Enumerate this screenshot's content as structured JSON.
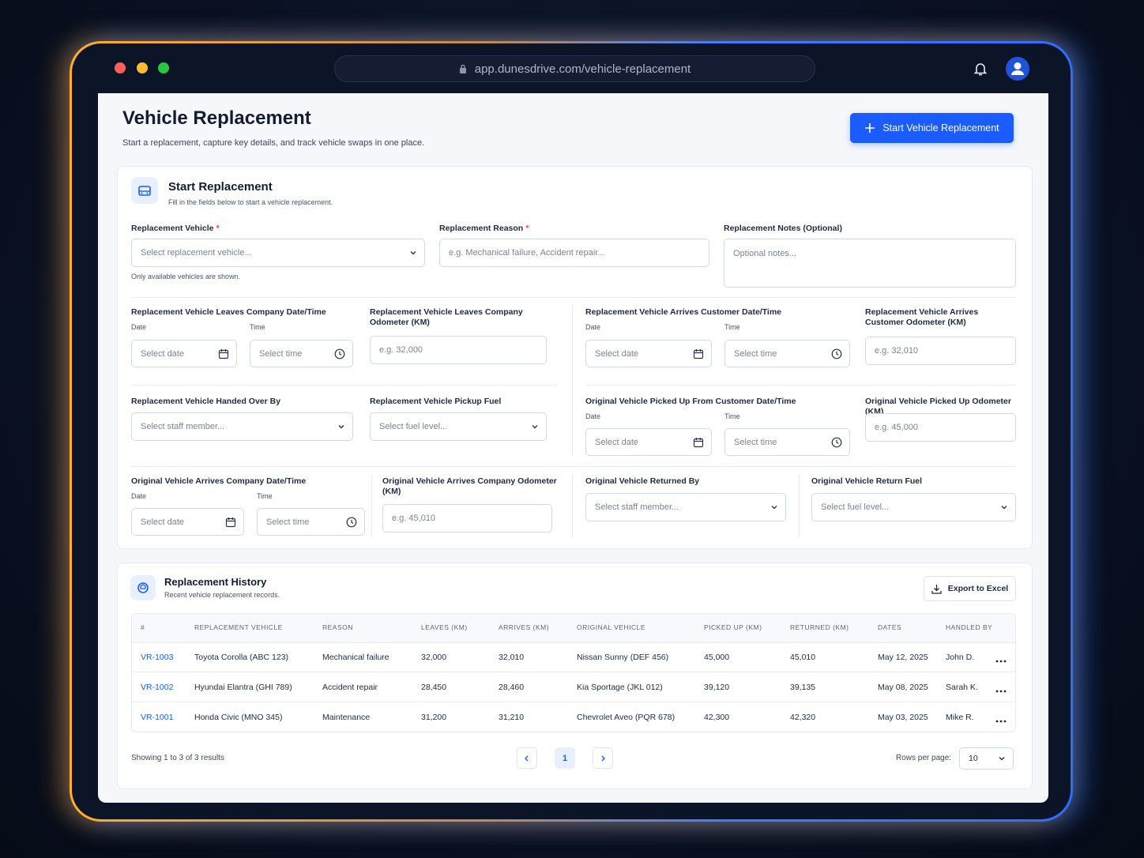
{
  "browser": {
    "url": "app.dunesdrive.com/vehicle-replacement"
  },
  "header": {
    "title": "Vehicle Replacement",
    "subtitle": "Start a replacement, capture key details, and track vehicle swaps in one place.",
    "button": "Start Vehicle Replacement"
  },
  "form": {
    "title": "Start Replacement",
    "subtitle": "Fill in the fields below to start a vehicle replacement.",
    "required_mark": "*",
    "date_label": "Date",
    "time_label": "Time",
    "fields": [
      {
        "label": "Replacement Vehicle",
        "placeholder": "Select replacement vehicle...",
        "helper": "Only available vehicles are shown."
      },
      {
        "label": "Replacement Reason",
        "placeholder": "e.g. Mechanical failure, Accident repair..."
      },
      {
        "label": "Replacement Notes (Optional)",
        "placeholder": "Optional notes..."
      },
      {
        "label": "Replacement Vehicle Leaves Company Date/Time",
        "date_placeholder": "Select date",
        "time_placeholder": "Select time"
      },
      {
        "label": "Replacement Vehicle Leaves Company Odometer (KM)",
        "placeholder": "e.g. 32,000"
      },
      {
        "label": "Replacement Vehicle Arrives Customer Date/Time",
        "date_placeholder": "Select date",
        "time_placeholder": "Select time"
      },
      {
        "label": "Replacement Vehicle Arrives Customer Odometer (KM)",
        "placeholder": "e.g. 32,010"
      },
      {
        "label": "Replacement Vehicle Handed Over By",
        "placeholder": "Select staff member..."
      },
      {
        "label": "Replacement Vehicle Pickup Fuel",
        "placeholder": "Select fuel level..."
      },
      {
        "label": "Original Vehicle Picked Up From Customer Date/Time",
        "date_placeholder": "Select date",
        "time_placeholder": "Select time"
      },
      {
        "label": "Original Vehicle Picked Up Odometer (KM)",
        "placeholder": "e.g. 45,000"
      },
      {
        "label": "Original Vehicle Arrives Company Date/Time",
        "date_placeholder": "Select date",
        "time_placeholder": "Select time"
      },
      {
        "label": "Original Vehicle Arrives Company Odometer (KM)",
        "placeholder": "e.g. 45,010"
      },
      {
        "label": "Original Vehicle Returned By",
        "placeholder": "Select staff member..."
      },
      {
        "label": "Original Vehicle Return Fuel",
        "placeholder": "Select fuel level..."
      }
    ]
  },
  "history": {
    "title": "Replacement History",
    "subtitle": "Recent vehicle replacement records.",
    "export": "Export to Excel",
    "columns": [
      "#",
      "REPLACEMENT VEHICLE",
      "REASON",
      "LEAVES (KM)",
      "ARRIVES (KM)",
      "ORIGINAL VEHICLE",
      "PICKED UP (KM)",
      "RETURNED (KM)",
      "DATES",
      "HANDLED BY"
    ],
    "rows": [
      [
        "VR-1003",
        "Toyota Corolla (ABC 123)",
        "Mechanical failure",
        "32,000",
        "32,010",
        "Nissan Sunny (DEF 456)",
        "45,000",
        "45,010",
        "May 12, 2025",
        "John D."
      ],
      [
        "VR-1002",
        "Hyundai Elantra (GHI 789)",
        "Accident repair",
        "28,450",
        "28,460",
        "Kia Sportage (JKL 012)",
        "39,120",
        "39,135",
        "May 08, 2025",
        "Sarah K."
      ],
      [
        "VR-1001",
        "Honda Civic (MNO 345)",
        "Maintenance",
        "31,200",
        "31,210",
        "Chevrolet Aveo (PQR 678)",
        "42,300",
        "42,320",
        "May 03, 2025",
        "Mike R."
      ]
    ],
    "footer": {
      "showing": "Showing 1 to 3 of 3 results",
      "page": "1",
      "rows_per_page_label": "Rows per page:",
      "rows_per_page": "10"
    }
  }
}
